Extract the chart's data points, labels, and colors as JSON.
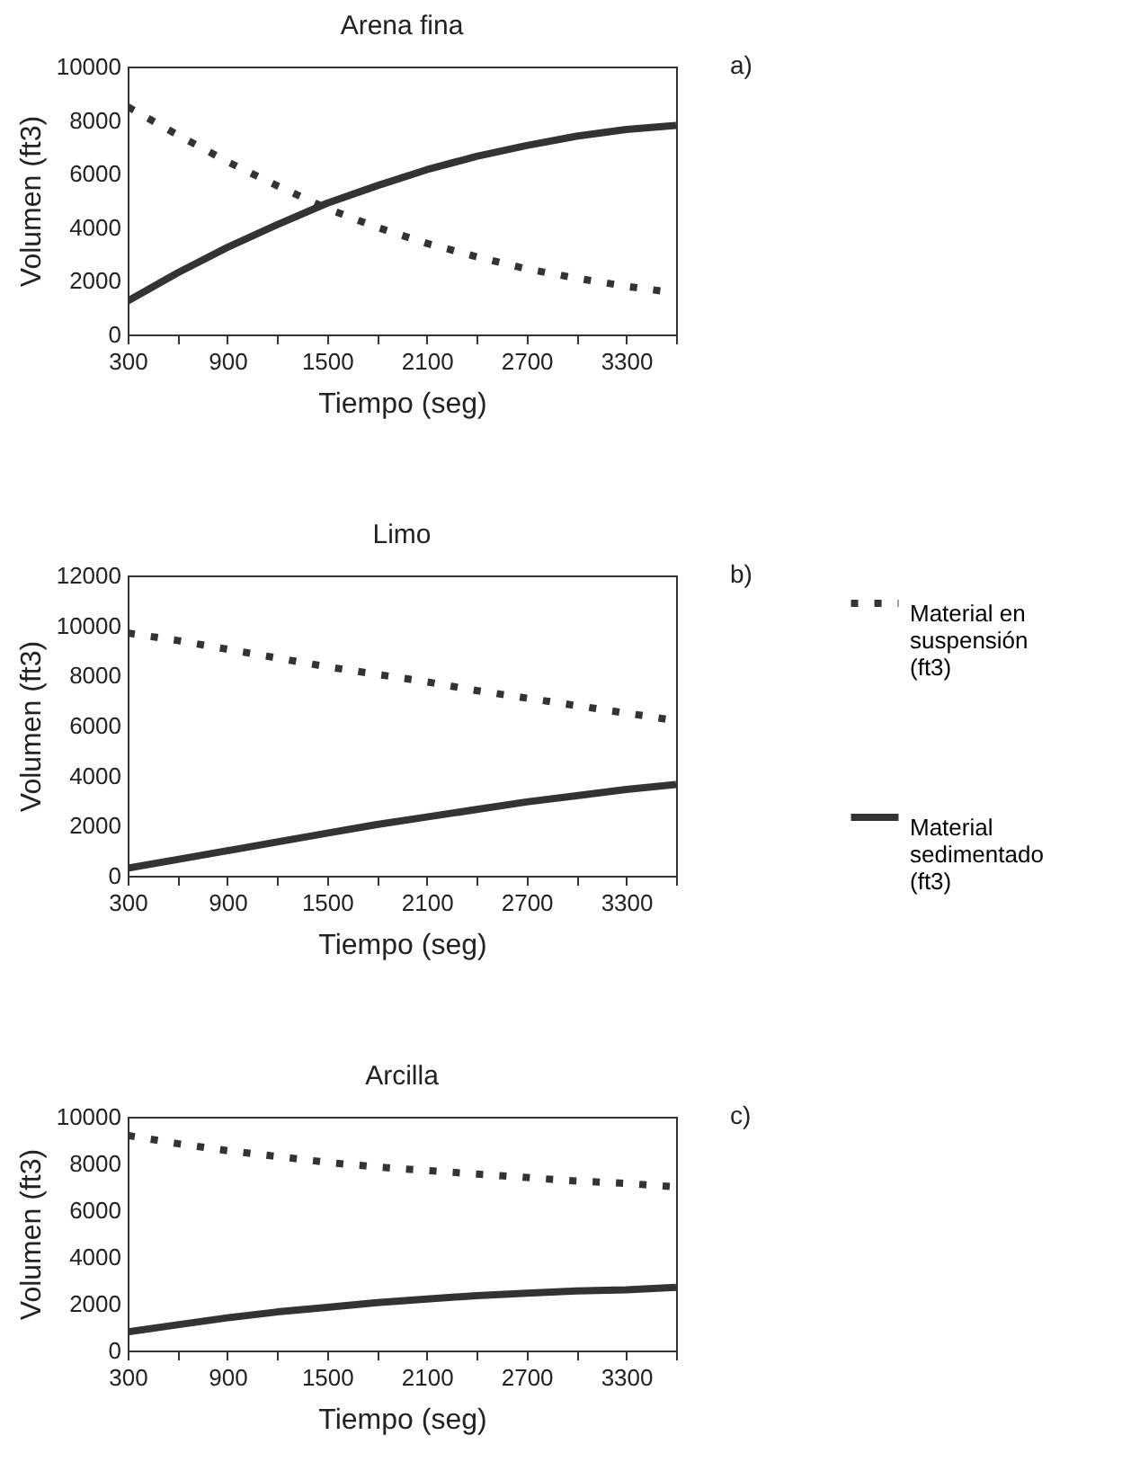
{
  "chart_data": [
    {
      "type": "line",
      "title": "Arena fina",
      "xlabel": "Tiempo (seg)",
      "ylabel": "Volumen (ft3)",
      "annotations": [
        "a)"
      ],
      "x": [
        300,
        600,
        900,
        1200,
        1500,
        1800,
        2100,
        2400,
        2700,
        3000,
        3300,
        3600
      ],
      "xlim": [
        300,
        3600
      ],
      "xticks": [
        300,
        {
          "value": 600,
          "label": null
        },
        900,
        {
          "value": 1200,
          "label": null
        },
        1500,
        {
          "value": 1800,
          "label": null
        },
        2100,
        {
          "value": 2400,
          "label": null
        },
        2700,
        {
          "value": 3000,
          "label": null
        },
        3300,
        {
          "value": 3600,
          "label": null
        }
      ],
      "ylim": [
        0,
        10000
      ],
      "yticks": [
        0,
        2000,
        4000,
        6000,
        8000,
        10000
      ],
      "grid": false,
      "legend": false,
      "marker": "none",
      "series": [
        {
          "color": "#333333",
          "line_style": "dotted",
          "values": [
            8500,
            7450,
            6450,
            5550,
            4700,
            4000,
            3400,
            2900,
            2450,
            2100,
            1800,
            1550
          ]
        },
        {
          "color": "#333333",
          "line_style": "solid",
          "values": [
            1250,
            2300,
            3250,
            4100,
            4900,
            5550,
            6150,
            6650,
            7050,
            7400,
            7650,
            7800
          ]
        }
      ]
    },
    {
      "type": "line",
      "title": "Limo",
      "xlabel": "Tiempo (seg)",
      "ylabel": "Volumen (ft3)",
      "annotations": [
        "b)"
      ],
      "x": [
        300,
        600,
        900,
        1200,
        1500,
        1800,
        2100,
        2400,
        2700,
        3000,
        3300,
        3600
      ],
      "xlim": [
        300,
        3600
      ],
      "xticks": [
        300,
        {
          "value": 600,
          "label": null
        },
        900,
        {
          "value": 1200,
          "label": null
        },
        1500,
        {
          "value": 1800,
          "label": null
        },
        2100,
        {
          "value": 2400,
          "label": null
        },
        2700,
        {
          "value": 3000,
          "label": null
        },
        3300,
        {
          "value": 3600,
          "label": null
        }
      ],
      "ylim": [
        0,
        12000
      ],
      "yticks": [
        0,
        2000,
        4000,
        6000,
        8000,
        10000,
        12000
      ],
      "grid": false,
      "legend": "right",
      "marker": "none",
      "series": [
        {
          "name": "Material en suspensión (ft3)",
          "color": "#333333",
          "line_style": "dotted",
          "values": [
            9700,
            9400,
            9050,
            8700,
            8350,
            8050,
            7750,
            7400,
            7100,
            6800,
            6500,
            6200
          ]
        },
        {
          "name": "Material sedimentado (ft3)",
          "color": "#333333",
          "line_style": "solid",
          "values": [
            300,
            650,
            1000,
            1350,
            1700,
            2050,
            2350,
            2650,
            2950,
            3200,
            3450,
            3650
          ]
        }
      ]
    },
    {
      "type": "line",
      "title": "Arcilla",
      "xlabel": "Tiempo (seg)",
      "ylabel": "Volumen (ft3)",
      "annotations": [
        "c)"
      ],
      "x": [
        300,
        600,
        900,
        1200,
        1500,
        1800,
        2100,
        2400,
        2700,
        3000,
        3300,
        3600
      ],
      "xlim": [
        300,
        3600
      ],
      "xticks": [
        300,
        {
          "value": 600,
          "label": null
        },
        900,
        {
          "value": 1200,
          "label": null
        },
        1500,
        {
          "value": 1800,
          "label": null
        },
        2100,
        {
          "value": 2400,
          "label": null
        },
        2700,
        {
          "value": 3000,
          "label": null
        },
        3300,
        {
          "value": 3600,
          "label": null
        }
      ],
      "ylim": [
        0,
        10000
      ],
      "yticks": [
        0,
        2000,
        4000,
        6000,
        8000,
        10000
      ],
      "grid": false,
      "legend": false,
      "marker": "none",
      "series": [
        {
          "color": "#333333",
          "line_style": "dotted",
          "values": [
            9200,
            8850,
            8550,
            8300,
            8050,
            7850,
            7700,
            7550,
            7400,
            7250,
            7150,
            7000
          ]
        },
        {
          "color": "#333333",
          "line_style": "solid",
          "values": [
            800,
            1100,
            1400,
            1650,
            1850,
            2050,
            2200,
            2350,
            2450,
            2550,
            2600,
            2700
          ]
        }
      ]
    }
  ]
}
